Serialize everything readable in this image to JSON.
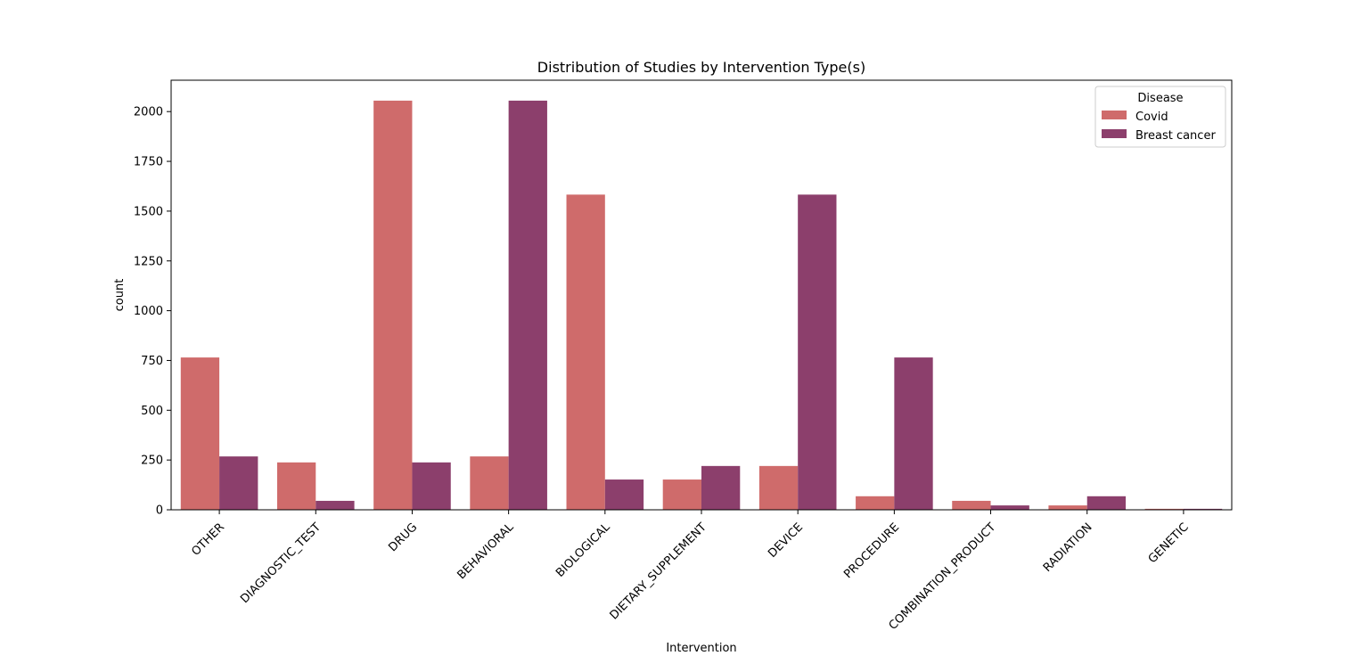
{
  "chart_data": {
    "type": "bar",
    "title": "Distribution of Studies by Intervention Type(s)",
    "xlabel": "Intervention",
    "ylabel": "count",
    "ylim": [
      0,
      2150
    ],
    "yticks": [
      0,
      250,
      500,
      750,
      1000,
      1250,
      1500,
      1750,
      2000
    ],
    "categories": [
      "OTHER",
      "DIAGNOSTIC_TEST",
      "DRUG",
      "BEHAVIORAL",
      "BIOLOGICAL",
      "DIETARY_SUPPLEMENT",
      "DEVICE",
      "PROCEDURE",
      "COMBINATION_PRODUCT",
      "RADIATION",
      "GENETIC"
    ],
    "legend": {
      "title": "Disease",
      "placement": "top-right"
    },
    "grid": false,
    "series": [
      {
        "name": "Covid",
        "color": "#cf6b6b",
        "values": [
          765,
          238,
          2055,
          268,
          1583,
          152,
          220,
          68,
          45,
          22,
          5
        ]
      },
      {
        "name": "Breast cancer",
        "color": "#8c3f6c",
        "values": [
          268,
          45,
          238,
          2055,
          152,
          220,
          1583,
          765,
          22,
          68,
          5
        ]
      }
    ]
  }
}
